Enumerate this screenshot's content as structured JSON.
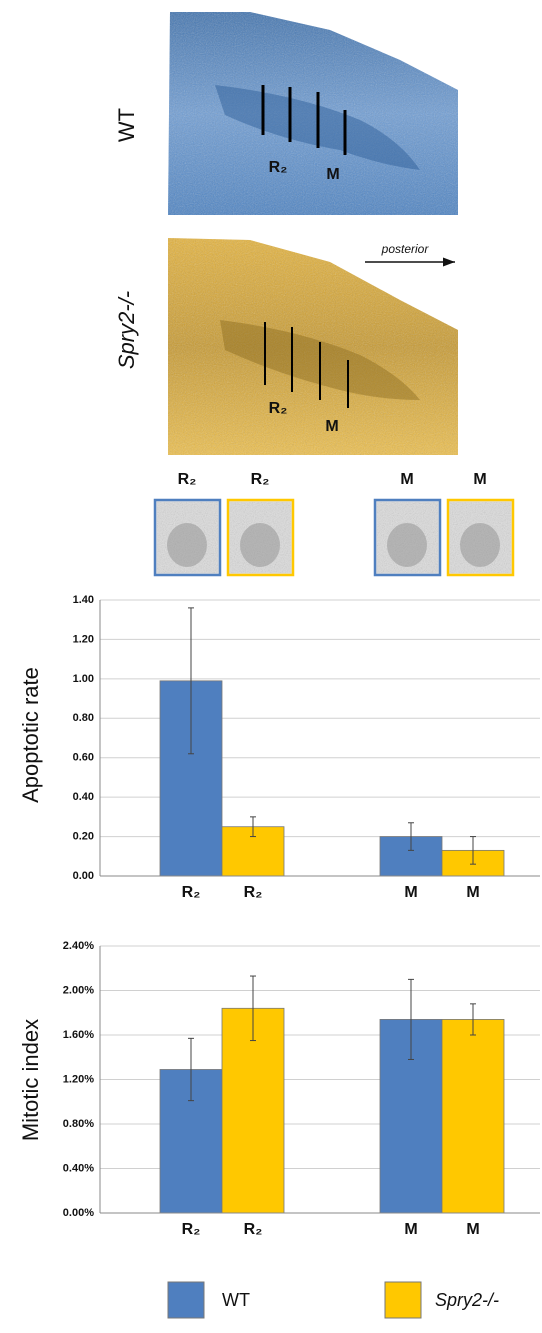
{
  "figure": {
    "panels": [
      {
        "label": "WT",
        "regions": [
          "R₂",
          "M"
        ]
      },
      {
        "label": "Spry2-/-",
        "regions": [
          "R₂",
          "M"
        ]
      }
    ],
    "arrow_label": "posterior",
    "thumbnails": [
      "R₂",
      "R₂",
      "M",
      "M"
    ]
  },
  "chart_data": [
    {
      "type": "bar",
      "y_label": "Apoptotic rate",
      "categories": [
        "R₂",
        "M"
      ],
      "series": [
        {
          "name": "WT",
          "color": "#4f7fbf",
          "values": [
            0.99,
            0.2
          ],
          "errors": [
            0.37,
            0.07
          ]
        },
        {
          "name": "Spry2-/-",
          "color": "#ffc800",
          "values": [
            0.25,
            0.13
          ],
          "errors": [
            0.05,
            0.07
          ]
        }
      ],
      "ylim": [
        0,
        1.4
      ],
      "yticks": [
        {
          "value": 0,
          "label": "0.00"
        },
        {
          "value": 0.2,
          "label": "0.20"
        },
        {
          "value": 0.4,
          "label": "0.40"
        },
        {
          "value": 0.6,
          "label": "0.60"
        },
        {
          "value": 0.8,
          "label": "0.80"
        },
        {
          "value": 1,
          "label": "1.00"
        },
        {
          "value": 1.2,
          "label": "1.20"
        },
        {
          "value": 1.4,
          "label": "1.40"
        }
      ],
      "grid": true
    },
    {
      "type": "bar",
      "y_label": "Mitotic index",
      "categories": [
        "R₂",
        "M"
      ],
      "series": [
        {
          "name": "WT",
          "color": "#4f7fbf",
          "values": [
            1.29,
            1.74
          ],
          "errors": [
            0.28,
            0.36
          ]
        },
        {
          "name": "Spry2-/-",
          "color": "#ffc800",
          "values": [
            1.84,
            1.74
          ],
          "errors": [
            0.29,
            0.14
          ]
        }
      ],
      "ylim": [
        0,
        2.4
      ],
      "yticks": [
        {
          "value": 0,
          "label": "0.00%"
        },
        {
          "value": 0.4,
          "label": "0.40%"
        },
        {
          "value": 0.8,
          "label": "0.80%"
        },
        {
          "value": 1.2,
          "label": "1.20%"
        },
        {
          "value": 1.6,
          "label": "1.60%"
        },
        {
          "value": 2,
          "label": "2.00%"
        },
        {
          "value": 2.4,
          "label": "2.40%"
        }
      ],
      "grid": true
    }
  ]
}
